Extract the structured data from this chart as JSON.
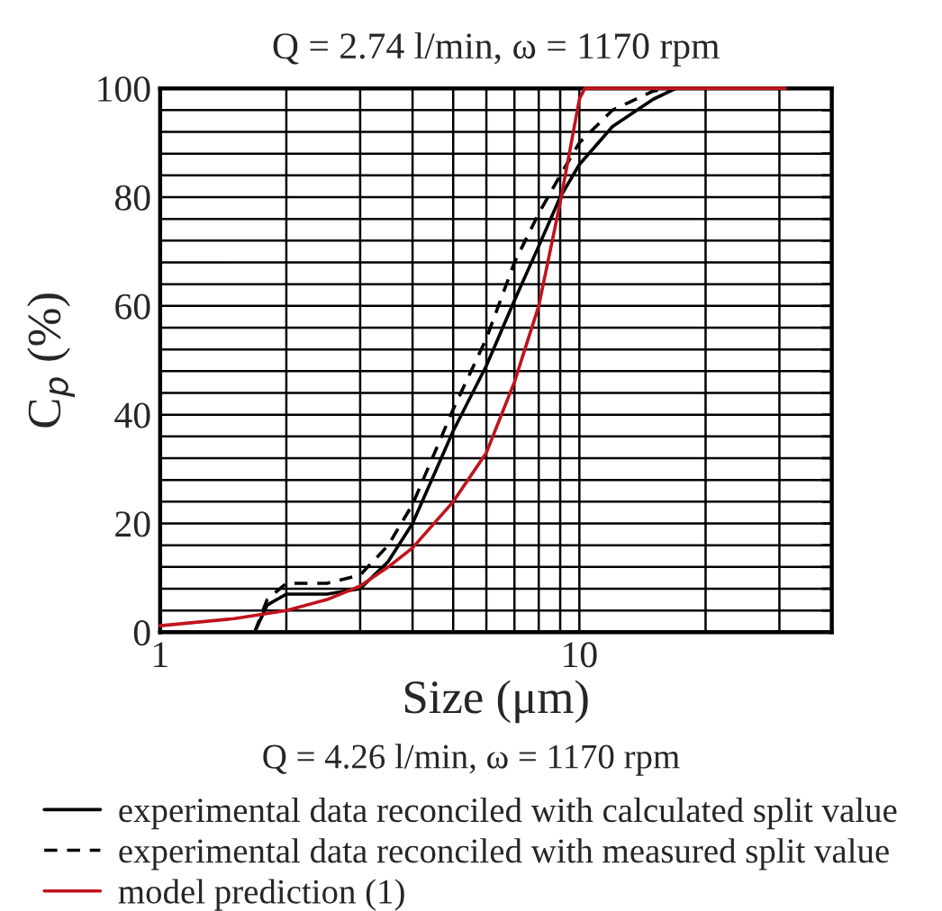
{
  "chart_data": {
    "type": "line",
    "title": "Q = 2.74 l/min, ω = 1170 rpm",
    "xlabel": "Size (μm)",
    "ylabel": "C$_{p}$ (%)",
    "annotations": [
      "Q = 4.26 l/min, ω = 1170 rpm"
    ],
    "log": "x",
    "xlim": [
      1,
      40
    ],
    "ylim": [
      0,
      100
    ],
    "xticks": [
      1,
      {
        "value": 2,
        "label": null
      },
      {
        "value": 3,
        "label": null
      },
      {
        "value": 4,
        "label": null
      },
      {
        "value": 5,
        "label": null
      },
      {
        "value": 6,
        "label": null
      },
      {
        "value": 7,
        "label": null
      },
      {
        "value": 8,
        "label": null
      },
      {
        "value": 9,
        "label": null
      },
      10,
      {
        "value": 20,
        "label": null
      },
      {
        "value": 30,
        "label": null
      }
    ],
    "yticks": [
      0,
      {
        "value": 4,
        "label": null
      },
      {
        "value": 8,
        "label": null
      },
      {
        "value": 12,
        "label": null
      },
      {
        "value": 16,
        "label": null
      },
      20,
      {
        "value": 24,
        "label": null
      },
      {
        "value": 28,
        "label": null
      },
      {
        "value": 32,
        "label": null
      },
      {
        "value": 36,
        "label": null
      },
      40,
      {
        "value": 44,
        "label": null
      },
      {
        "value": 48,
        "label": null
      },
      {
        "value": 52,
        "label": null
      },
      {
        "value": 56,
        "label": null
      },
      60,
      {
        "value": 64,
        "label": null
      },
      {
        "value": 68,
        "label": null
      },
      {
        "value": 72,
        "label": null
      },
      {
        "value": 76,
        "label": null
      },
      80,
      {
        "value": 84,
        "label": null
      },
      {
        "value": 88,
        "label": null
      },
      {
        "value": 92,
        "label": null
      },
      {
        "value": 96,
        "label": null
      },
      100
    ],
    "grid": true,
    "legend": "bottom",
    "marker": "none",
    "series": [
      {
        "name": "experimental data reconciled with calculated split value",
        "color": "#000000",
        "line_style": "solid",
        "x": [
          1.68,
          1.8,
          2,
          2.5,
          3,
          3.5,
          4,
          5,
          6,
          7,
          8,
          9,
          10,
          12,
          15,
          17,
          30
        ],
        "values": [
          0,
          5,
          7,
          7,
          8,
          13,
          20,
          37,
          49,
          61,
          71,
          80,
          86,
          93,
          98,
          100,
          100
        ]
      },
      {
        "name": "experimental data reconciled with measured split value",
        "color": "#000000",
        "line_style": "dashed",
        "x": [
          1.68,
          1.8,
          2,
          2.5,
          3,
          3.5,
          4,
          5,
          6,
          7,
          8,
          9,
          10,
          12,
          15,
          17,
          30
        ],
        "values": [
          0,
          6,
          9,
          9,
          10.5,
          16,
          23.5,
          41,
          54,
          68,
          77,
          84,
          90,
          96,
          99.5,
          100,
          100
        ]
      },
      {
        "name": "model prediction (1)",
        "color": "#c0141c",
        "line_style": "solid",
        "x": [
          1,
          1.5,
          2,
          2.5,
          3,
          3.5,
          4,
          5,
          6,
          7,
          8,
          9,
          10,
          10.3,
          31
        ],
        "values": [
          1.2,
          2.5,
          4,
          6,
          8.5,
          12,
          15.5,
          24,
          33,
          46,
          60,
          79,
          98,
          100,
          100
        ]
      }
    ]
  }
}
